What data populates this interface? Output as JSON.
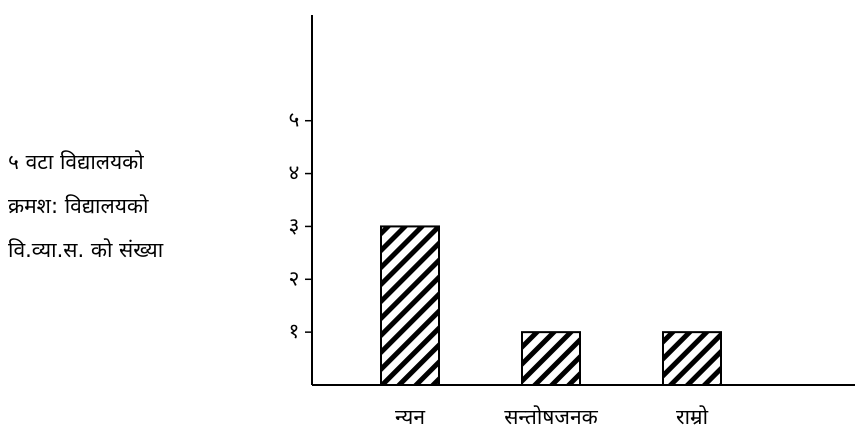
{
  "chart_data": {
    "type": "bar",
    "ylabel": [
      "५ वटा विद्यालयको",
      "क्रमश: विद्यालयको",
      "वि.व्या.स. को संख्या"
    ],
    "categories": [
      "न्यन",
      "सन्तोषजनक",
      "राम्रो"
    ],
    "values": [
      3,
      1,
      1
    ],
    "color": "#000000",
    "ylim": [
      0,
      7
    ],
    "yticks": [
      {
        "value": 1,
        "label": "१"
      },
      {
        "value": 2,
        "label": "२"
      },
      {
        "value": 3,
        "label": "३"
      },
      {
        "value": 4,
        "label": "४"
      },
      {
        "value": 5,
        "label": "५"
      }
    ]
  }
}
